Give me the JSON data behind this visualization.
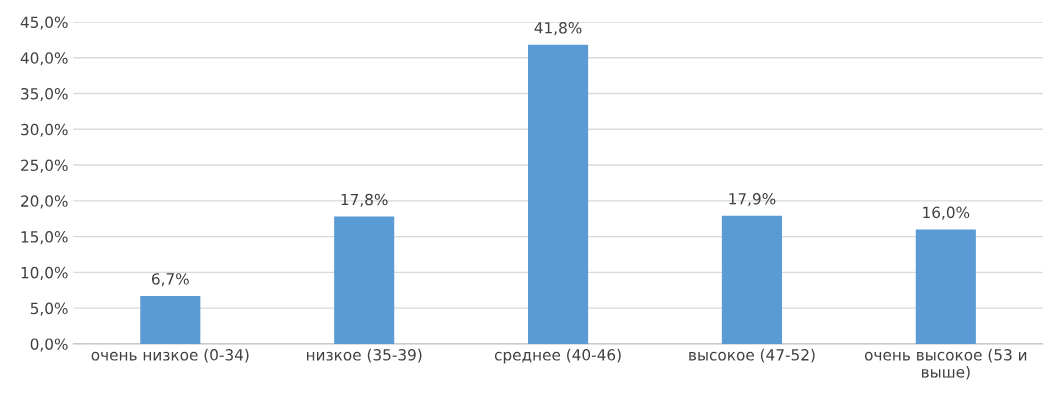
{
  "chart_data": {
    "type": "bar",
    "categories": [
      "очень низкое (0-34)",
      "низкое (35-39)",
      "среднее (40-46)",
      "высокое (47-52)",
      "очень высокое (53 и выше)"
    ],
    "values": [
      6.7,
      17.8,
      41.8,
      17.9,
      16.0
    ],
    "value_labels": [
      "6,7%",
      "17,8%",
      "41,8%",
      "17,9%",
      "16,0%"
    ],
    "color": "#5b9bd5",
    "ylim": [
      0,
      45
    ],
    "yticks": [
      {
        "value": 0,
        "label": "0,0%"
      },
      {
        "value": 5,
        "label": "5,0%"
      },
      {
        "value": 10,
        "label": "10,0%"
      },
      {
        "value": 15,
        "label": "15,0%"
      },
      {
        "value": 20,
        "label": "20,0%"
      },
      {
        "value": 25,
        "label": "25,0%"
      },
      {
        "value": 30,
        "label": "30,0%"
      },
      {
        "value": 35,
        "label": "35,0%"
      },
      {
        "value": 40,
        "label": "40,0%"
      },
      {
        "value": 45,
        "label": "45,0%"
      }
    ],
    "grid": "y"
  }
}
